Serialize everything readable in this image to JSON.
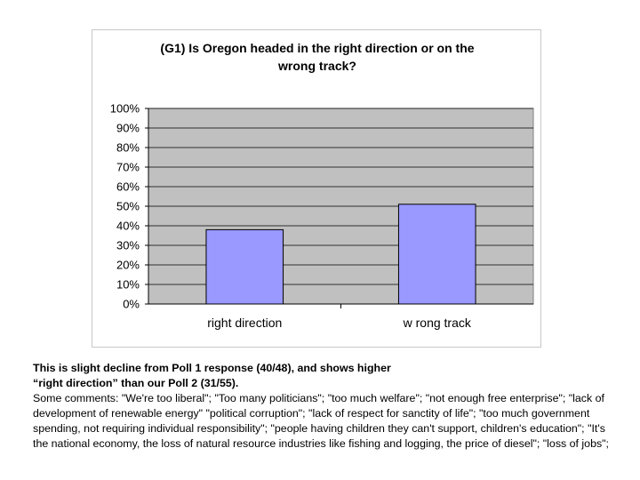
{
  "chart_data": {
    "type": "bar",
    "title_lines": [
      "(G1) Is Oregon headed in the right direction or on the",
      "wrong track?"
    ],
    "categories": [
      "right direction",
      "w rong track"
    ],
    "values": [
      38,
      51
    ],
    "ylim": [
      0,
      100
    ],
    "yticks": [
      "0%",
      "10%",
      "20%",
      "30%",
      "40%",
      "50%",
      "60%",
      "70%",
      "80%",
      "90%",
      "100%"
    ],
    "grid": true,
    "legend": "none",
    "colors": {
      "bar": "#9999ff",
      "bar_edge": "#000000",
      "plot_bg": "#c0c0c0",
      "grid": "#000000"
    }
  },
  "caption": {
    "bold_line1": "This is slight decline from Poll 1 response (40/48), and shows higher",
    "bold_line2": "“right direction” than our Poll 2 (31/55).",
    "comments": "Some comments: \"We're too liberal\"; \"Too many politicians\"; \"too much welfare\"; \"not enough free enterprise\"; \"lack of development of renewable energy\" \"political corruption\"; \"lack of respect for sanctity of life\"; \"too much government spending, not requiring individual responsibility\"; \"people having children they can't support, children's education\"; \"It's the national economy, the loss of natural resource industries like fishing and logging, the price of diesel\"; \"loss of jobs\";"
  }
}
